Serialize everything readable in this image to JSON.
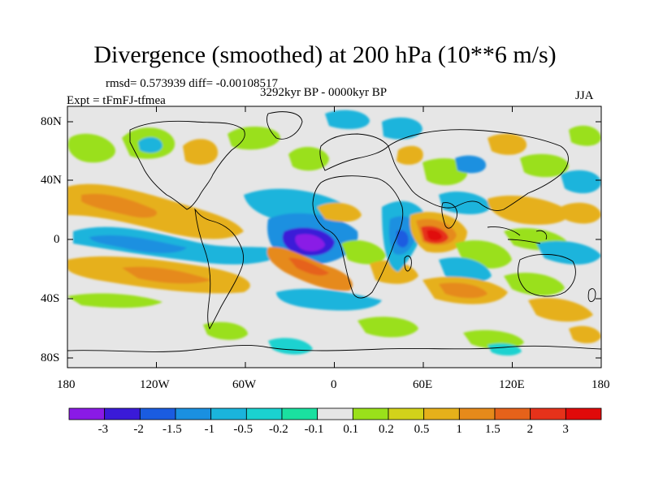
{
  "title": "Divergence (smoothed) at 200 hPa (10**6 m/s)",
  "rmsd_line": "rmsd= 0.573939 diff= -0.00108517",
  "period": "3292kyr BP - 0000kyr BP",
  "experiment": "Expt = tFmFJ-tfmea",
  "season": "JJA",
  "y_ticks": [
    "80N",
    "40N",
    "0",
    "40S",
    "80S"
  ],
  "x_ticks": [
    "180",
    "120W",
    "60W",
    "0",
    "60E",
    "120E",
    "180"
  ],
  "colorbar": {
    "labels": [
      "-3",
      "-2",
      "-1.5",
      "-1",
      "-0.5",
      "-0.2",
      "-0.1",
      "0.1",
      "0.2",
      "0.5",
      "1",
      "1.5",
      "2",
      "3"
    ],
    "colors": [
      "#8a1ae6",
      "#3a1ad8",
      "#1a5ce0",
      "#1a90e0",
      "#1ab4dc",
      "#1ad2d0",
      "#1ae0a0",
      "#e6e6e6",
      "#9ae01a",
      "#d2d21a",
      "#e6b01a",
      "#e68a1a",
      "#e6621a",
      "#e6321a",
      "#e00a0a"
    ]
  },
  "map_background": "#e6e6e6"
}
